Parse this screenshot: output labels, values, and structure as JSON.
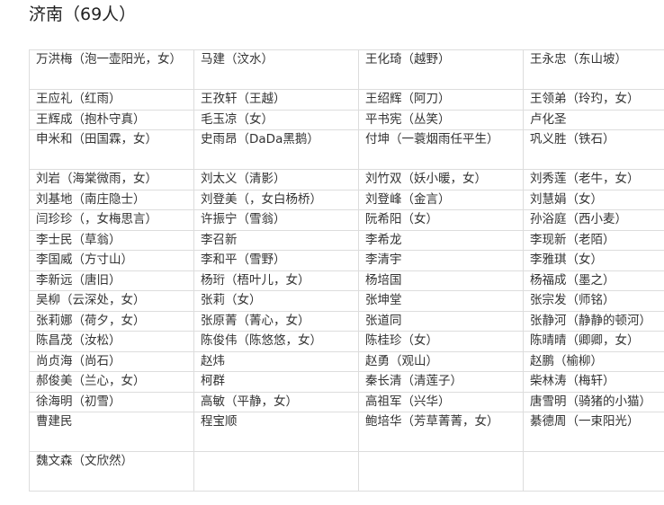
{
  "title": "济南（69人）",
  "rows": [
    [
      "万洪梅（泡一壶阳光，女）",
      "马建（汶水）",
      "王化琦（越野）",
      "王永忠（东山坡）"
    ],
    [
      "王应礼（红雨）",
      "王孜轩（王越）",
      "王绍辉（阿刀）",
      "王领弟（玲玓，女）"
    ],
    [
      "王辉成（抱朴守真）",
      "毛玉凉（女）",
      "平书宪（丛笑）",
      "卢化圣"
    ],
    [
      "申米和（田国霖，女）",
      "史雨昂（DaDa黑鹅）",
      "付坤（一蓑烟雨任平生）",
      "巩义胜（铁石）"
    ],
    [
      "刘岩（海棠微雨，女）",
      "刘太义（清影）",
      "刘竹双（妖小暖，女）",
      "刘秀莲（老牛，女）"
    ],
    [
      "刘基地（南庄隐士）",
      "刘登美（，女白杨桥）",
      "刘登峰（金言）",
      "刘慧娟（女）"
    ],
    [
      "闫珍珍（，女梅思言）",
      "许振宁（雪翁）",
      "阮希阳（女）",
      "孙浴庭（西小麦）"
    ],
    [
      "李士民（草翁）",
      "李召新",
      "李希龙",
      "李现新（老陌）"
    ],
    [
      "李国威（方寸山）",
      "李和平（雪野）",
      "李清宇",
      "李雅琪（女）"
    ],
    [
      "李新远（唐旧）",
      "杨珩（梧叶儿，女）",
      "杨培国",
      "杨福成（墨之）"
    ],
    [
      "吴柳（云深处，女）",
      "张莉（女）",
      "张坤堂",
      "张宗发（师铭）"
    ],
    [
      "张莉娜（荷夕，女）",
      "张原菁（菁心，女）",
      "张道同",
      "张静河（静静的顿河）"
    ],
    [
      "陈昌茂（汝松）",
      "陈俊伟（陈悠悠，女）",
      "陈桂珍（女）",
      "陈晴晴（卿卿，女）"
    ],
    [
      "尚贞海（尚石）",
      "赵炜",
      "赵勇（观山）",
      "赵鹏（榆柳）"
    ],
    [
      "郝俊美（兰心，女）",
      "柯群",
      "秦长清（清莲子）",
      "柴林涛（梅轩）"
    ],
    [
      "徐海明（初雪）",
      "高敏（平静，女）",
      "高祖军（兴华）",
      "唐雪明（骑猪的小猫）"
    ],
    [
      "曹建民",
      "程宝顺",
      "鲍培华（芳草菁菁，女）",
      "綦德周（一束阳光）"
    ],
    [
      "魏文森（文欣然）",
      "",
      "",
      ""
    ]
  ]
}
